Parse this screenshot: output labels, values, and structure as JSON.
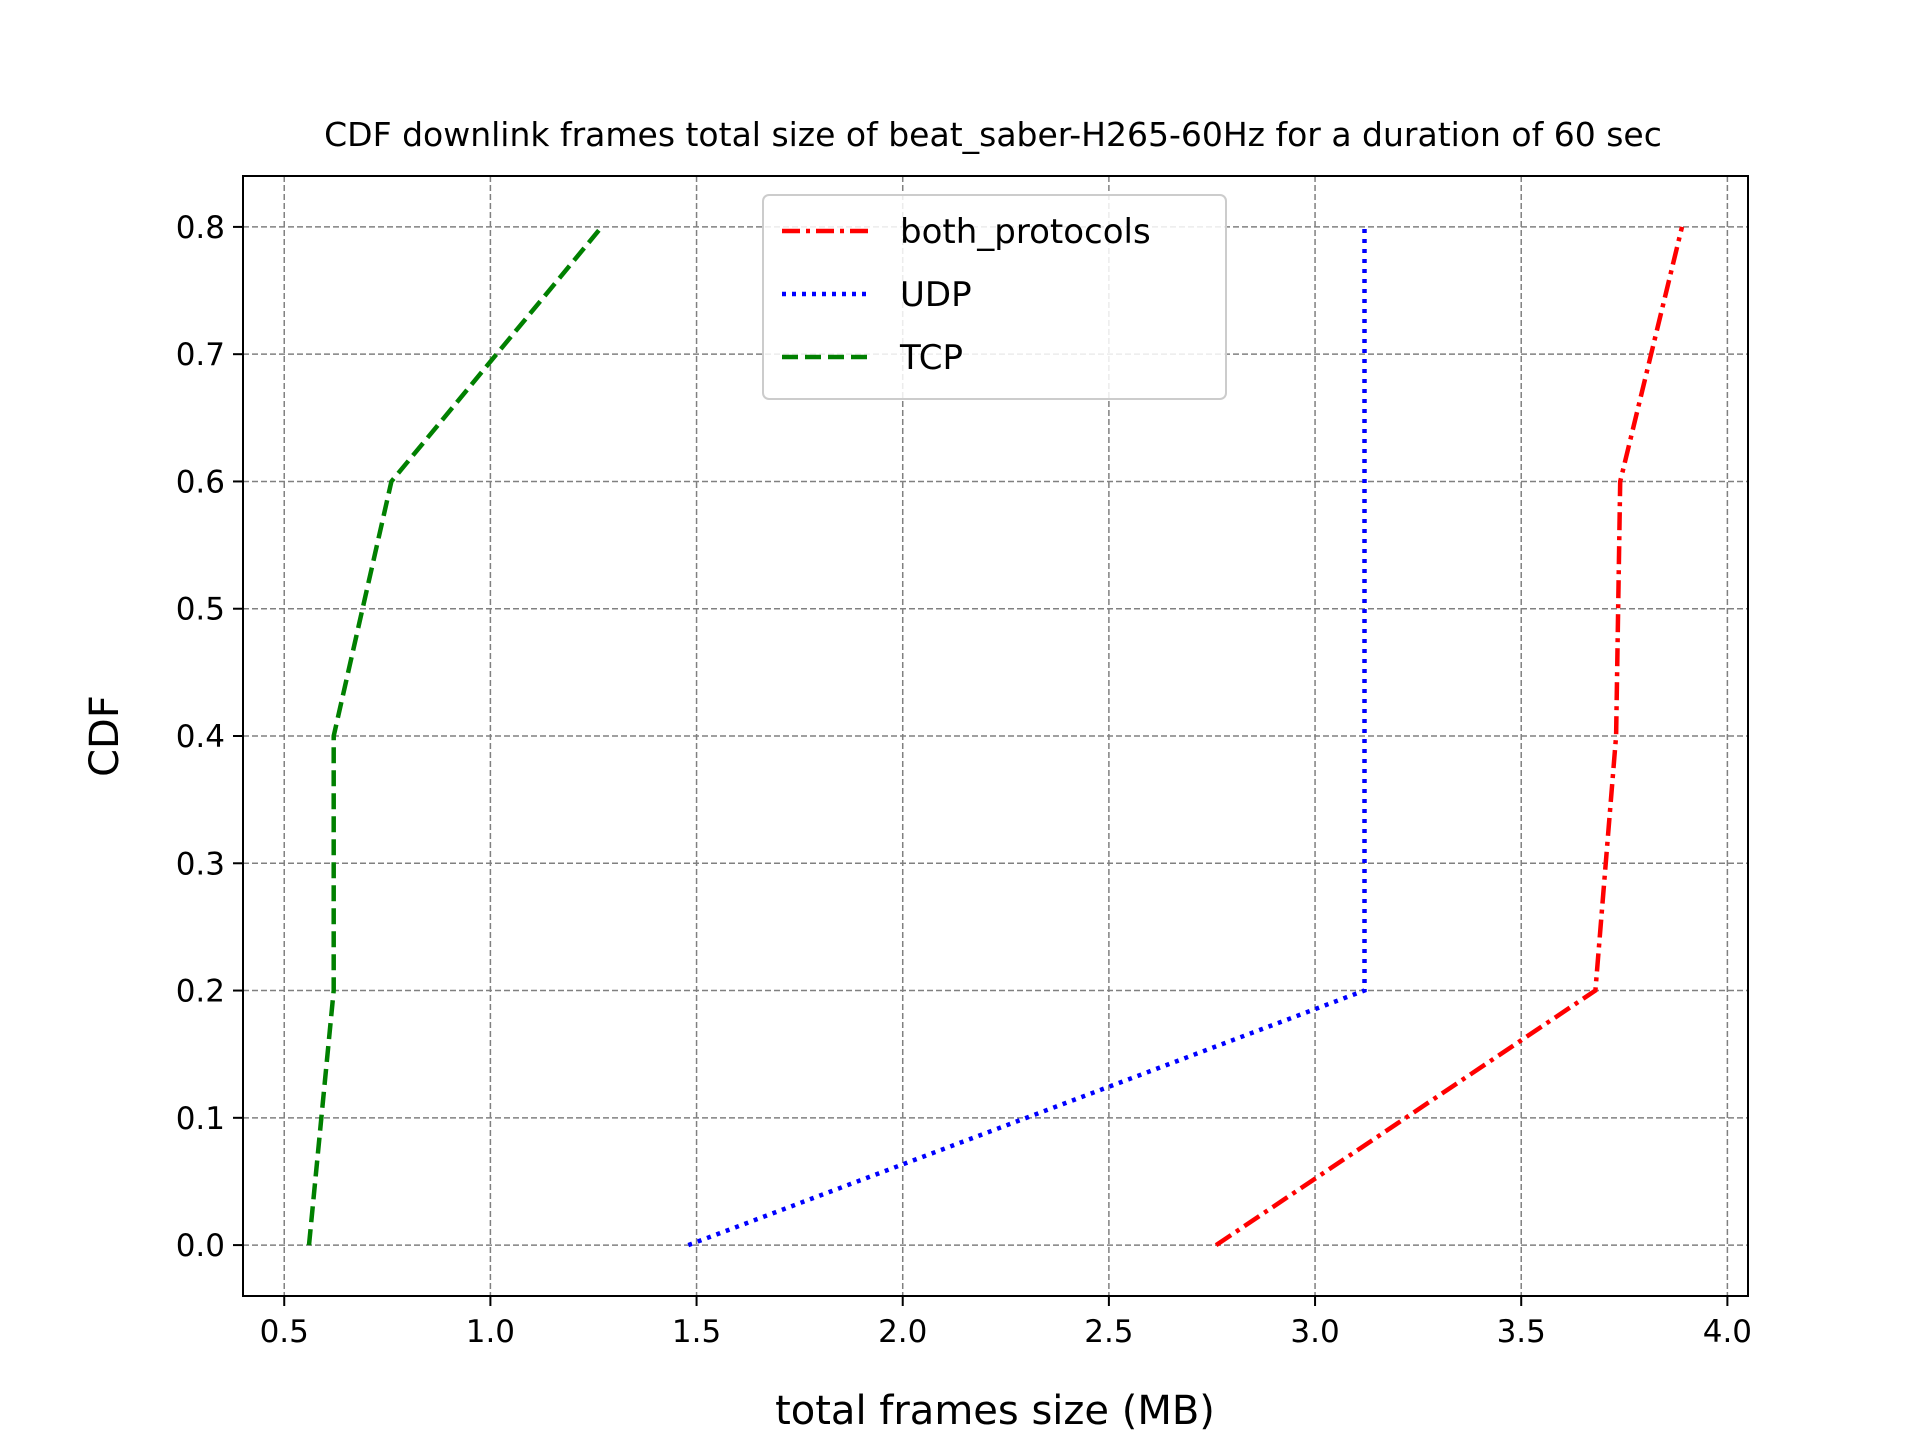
{
  "chart_data": {
    "type": "line",
    "title": "CDF downlink frames total size of beat_saber-H265-60Hz for a duration of 60 sec",
    "xlabel": "total frames size (MB)",
    "ylabel": "CDF",
    "xlim": [
      0.4,
      4.05
    ],
    "ylim": [
      -0.04,
      0.84
    ],
    "xticks": [
      0.5,
      1.0,
      1.5,
      2.0,
      2.5,
      3.0,
      3.5,
      4.0
    ],
    "yticks": [
      0.0,
      0.1,
      0.2,
      0.3,
      0.4,
      0.5,
      0.6,
      0.7,
      0.8
    ],
    "xtick_labels": [
      "0.5",
      "1.0",
      "1.5",
      "2.0",
      "2.5",
      "3.0",
      "3.5",
      "4.0"
    ],
    "ytick_labels": [
      "0.0",
      "0.1",
      "0.2",
      "0.3",
      "0.4",
      "0.5",
      "0.6",
      "0.7",
      "0.8"
    ],
    "grid": true,
    "legend_position": "upper-center",
    "series": [
      {
        "name": "both_protocols",
        "color": "#ff0000",
        "style": "dashdot",
        "x": [
          2.76,
          3.68,
          3.73,
          3.74,
          3.89
        ],
        "y": [
          0.0,
          0.2,
          0.4,
          0.6,
          0.8
        ]
      },
      {
        "name": "UDP",
        "color": "#0000ff",
        "style": "dotted",
        "x": [
          1.48,
          3.12,
          3.12,
          3.12,
          3.12
        ],
        "y": [
          0.0,
          0.2,
          0.4,
          0.6,
          0.8
        ]
      },
      {
        "name": "TCP",
        "color": "#008000",
        "style": "dashed",
        "x": [
          0.56,
          0.62,
          0.62,
          0.76,
          1.27
        ],
        "y": [
          0.0,
          0.2,
          0.4,
          0.6,
          0.8
        ]
      }
    ]
  }
}
